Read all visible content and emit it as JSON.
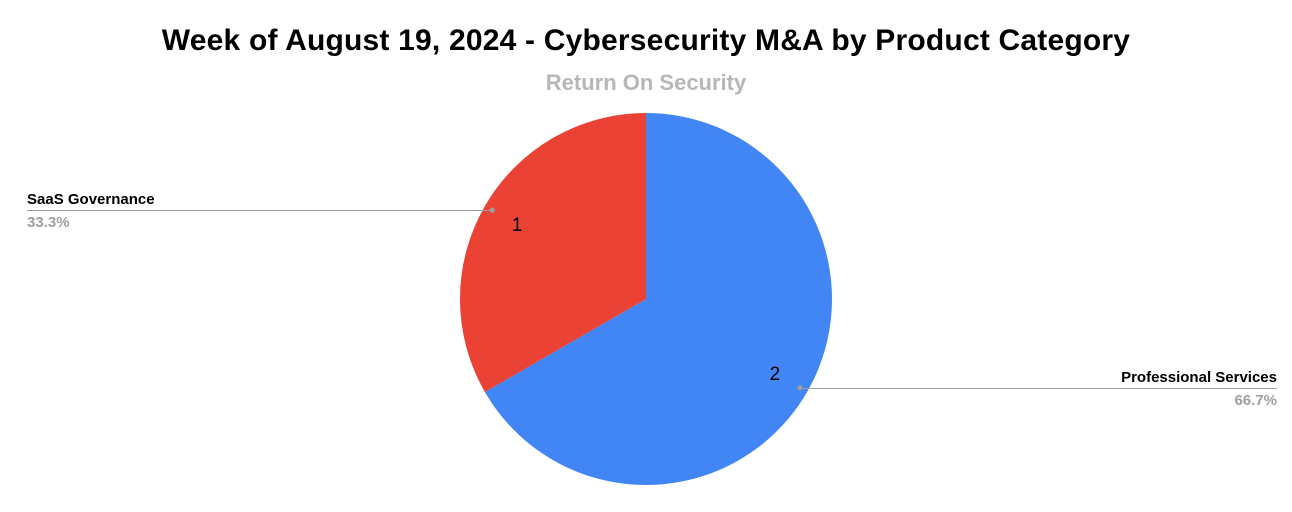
{
  "chart_data": {
    "type": "pie",
    "title": "Week of August 19, 2024 - Cybersecurity M&A by Product Category",
    "subtitle": "Return On Security",
    "categories": [
      "Professional Services",
      "SaaS Governance"
    ],
    "values": [
      2,
      1
    ],
    "percent_labels": [
      "66.7%",
      "33.3%"
    ],
    "slice_value_labels": [
      "2",
      "1"
    ],
    "colors": [
      "#4285f4",
      "#ea4335"
    ],
    "start_angle_deg": 0,
    "direction": "clockwise",
    "legend_position": "outside-callouts",
    "grid": false,
    "styles": {
      "background": "#ffffff",
      "title_color": "#000000",
      "subtitle_color": "#b7b7b7",
      "percent_label_color": "#9e9e9e",
      "leader_line_color": "#9e9e9e",
      "slice_value_color": "#000000"
    }
  }
}
